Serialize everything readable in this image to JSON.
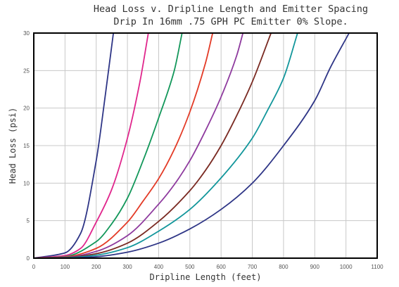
{
  "chart_data": {
    "type": "line",
    "title": "Head Loss v. Dripline Length and Emitter Spacing",
    "subtitle": "Drip In 16mm .75 GPH PC Emitter 0% Slope.",
    "xlabel": "Dripline Length (feet)",
    "ylabel": "Head Loss (psi)",
    "xlim": [
      0,
      1100
    ],
    "ylim": [
      0,
      30
    ],
    "x_ticks": [
      "0",
      "100",
      "200",
      "300",
      "400",
      "500",
      "600",
      "700",
      "800",
      "900",
      "1000",
      "1100"
    ],
    "y_ticks": [
      "0",
      "5",
      "10",
      "15",
      "20",
      "25",
      "30"
    ],
    "grid": true,
    "legend": "none",
    "series": [
      {
        "color": "#2e3586",
        "points": [
          [
            0,
            0
          ],
          [
            100,
            0.7
          ],
          [
            150,
            3.3
          ],
          [
            200,
            13
          ],
          [
            230,
            22
          ],
          [
            255,
            30
          ]
        ]
      },
      {
        "color": "#e0268c",
        "points": [
          [
            0,
            0
          ],
          [
            100,
            0.35
          ],
          [
            150,
            1.3
          ],
          [
            200,
            4.8
          ],
          [
            250,
            9.2
          ],
          [
            300,
            16
          ],
          [
            340,
            23.5
          ],
          [
            367,
            30
          ]
        ]
      },
      {
        "color": "#12975a",
        "points": [
          [
            0,
            0
          ],
          [
            100,
            0.2
          ],
          [
            200,
            2.2
          ],
          [
            250,
            4.6
          ],
          [
            300,
            8
          ],
          [
            350,
            13
          ],
          [
            400,
            18.7
          ],
          [
            450,
            25
          ],
          [
            475,
            30
          ]
        ]
      },
      {
        "color": "#e33a26",
        "points": [
          [
            0,
            0
          ],
          [
            100,
            0.15
          ],
          [
            200,
            1.3
          ],
          [
            300,
            4.8
          ],
          [
            350,
            7.6
          ],
          [
            400,
            10.6
          ],
          [
            450,
            14.5
          ],
          [
            500,
            19.5
          ],
          [
            550,
            26
          ],
          [
            573,
            30
          ]
        ]
      },
      {
        "color": "#8e3a9e",
        "points": [
          [
            0,
            0
          ],
          [
            100,
            0.1
          ],
          [
            200,
            0.9
          ],
          [
            300,
            3
          ],
          [
            400,
            7.2
          ],
          [
            450,
            9.8
          ],
          [
            500,
            13
          ],
          [
            550,
            17
          ],
          [
            600,
            21.5
          ],
          [
            650,
            27
          ],
          [
            670,
            30
          ]
        ]
      },
      {
        "color": "#7a2a22",
        "points": [
          [
            0,
            0
          ],
          [
            100,
            0.08
          ],
          [
            200,
            0.6
          ],
          [
            300,
            2
          ],
          [
            400,
            4.9
          ],
          [
            500,
            9
          ],
          [
            550,
            11.7
          ],
          [
            600,
            15
          ],
          [
            650,
            19
          ],
          [
            700,
            23.5
          ],
          [
            760,
            30
          ]
        ]
      },
      {
        "color": "#12969b",
        "points": [
          [
            0,
            0
          ],
          [
            100,
            0.05
          ],
          [
            200,
            0.4
          ],
          [
            300,
            1.4
          ],
          [
            400,
            3.6
          ],
          [
            500,
            6.5
          ],
          [
            600,
            10.7
          ],
          [
            700,
            16
          ],
          [
            750,
            19.8
          ],
          [
            800,
            24
          ],
          [
            845,
            30
          ]
        ]
      },
      {
        "color": "#2e3586",
        "points": [
          [
            0,
            0
          ],
          [
            100,
            0.02
          ],
          [
            200,
            0.2
          ],
          [
            300,
            0.8
          ],
          [
            400,
            2
          ],
          [
            500,
            3.9
          ],
          [
            600,
            6.5
          ],
          [
            700,
            10
          ],
          [
            800,
            15
          ],
          [
            900,
            21
          ],
          [
            950,
            25.4
          ],
          [
            1010,
            30
          ]
        ]
      }
    ]
  }
}
